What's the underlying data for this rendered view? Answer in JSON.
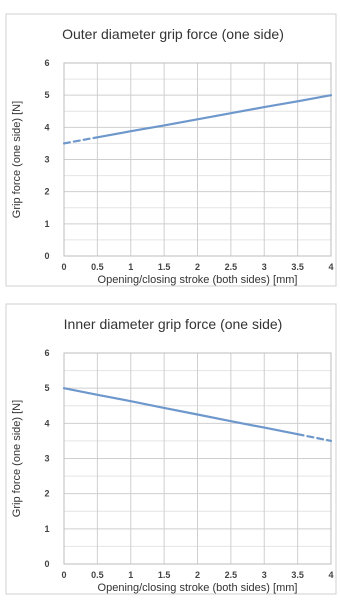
{
  "chart_data": [
    {
      "type": "line",
      "title": "Outer diameter grip force (one side)",
      "xlabel": "Opening/closing stroke (both sides) [mm]",
      "ylabel": "Grip force (one side) [N]",
      "xlim": [
        0,
        4
      ],
      "ylim": [
        0,
        6
      ],
      "x_ticks": [
        "0",
        "0.5",
        "1",
        "1.5",
        "2",
        "2.5",
        "3",
        "3.5",
        "4"
      ],
      "y_ticks": [
        "0",
        "1",
        "2",
        "3",
        "4",
        "5",
        "6"
      ],
      "grid": true,
      "legend": "none",
      "line_color": "#6e98cc",
      "series": [
        {
          "segments": [
            {
              "style": "dashed",
              "points": [
                [
                  0,
                  3.5
                ],
                [
                  0.5,
                  3.69
                ]
              ]
            },
            {
              "style": "solid",
              "points": [
                [
                  0.5,
                  3.69
                ],
                [
                  1,
                  3.88
                ],
                [
                  1.5,
                  4.06
                ],
                [
                  2,
                  4.25
                ],
                [
                  2.5,
                  4.44
                ],
                [
                  3,
                  4.63
                ],
                [
                  3.5,
                  4.81
                ],
                [
                  4,
                  5.0
                ]
              ]
            }
          ]
        }
      ]
    },
    {
      "type": "line",
      "title": "Inner diameter grip force (one side)",
      "xlabel": "Opening/closing stroke (both sides) [mm]",
      "ylabel": "Grip force (one side) [N]",
      "xlim": [
        0,
        4
      ],
      "ylim": [
        0,
        6
      ],
      "x_ticks": [
        "0",
        "0.5",
        "1",
        "1.5",
        "2",
        "2.5",
        "3",
        "3.5",
        "4"
      ],
      "y_ticks": [
        "0",
        "1",
        "2",
        "3",
        "4",
        "5",
        "6"
      ],
      "grid": true,
      "legend": "none",
      "line_color": "#6e98cc",
      "series": [
        {
          "segments": [
            {
              "style": "solid",
              "points": [
                [
                  0,
                  5.0
                ],
                [
                  0.5,
                  4.81
                ],
                [
                  1,
                  4.63
                ],
                [
                  1.5,
                  4.44
                ],
                [
                  2,
                  4.25
                ],
                [
                  2.5,
                  4.06
                ],
                [
                  3,
                  3.88
                ],
                [
                  3.5,
                  3.69
                ]
              ]
            },
            {
              "style": "dashed",
              "points": [
                [
                  3.5,
                  3.69
                ],
                [
                  4,
                  3.5
                ]
              ]
            }
          ]
        }
      ]
    }
  ]
}
